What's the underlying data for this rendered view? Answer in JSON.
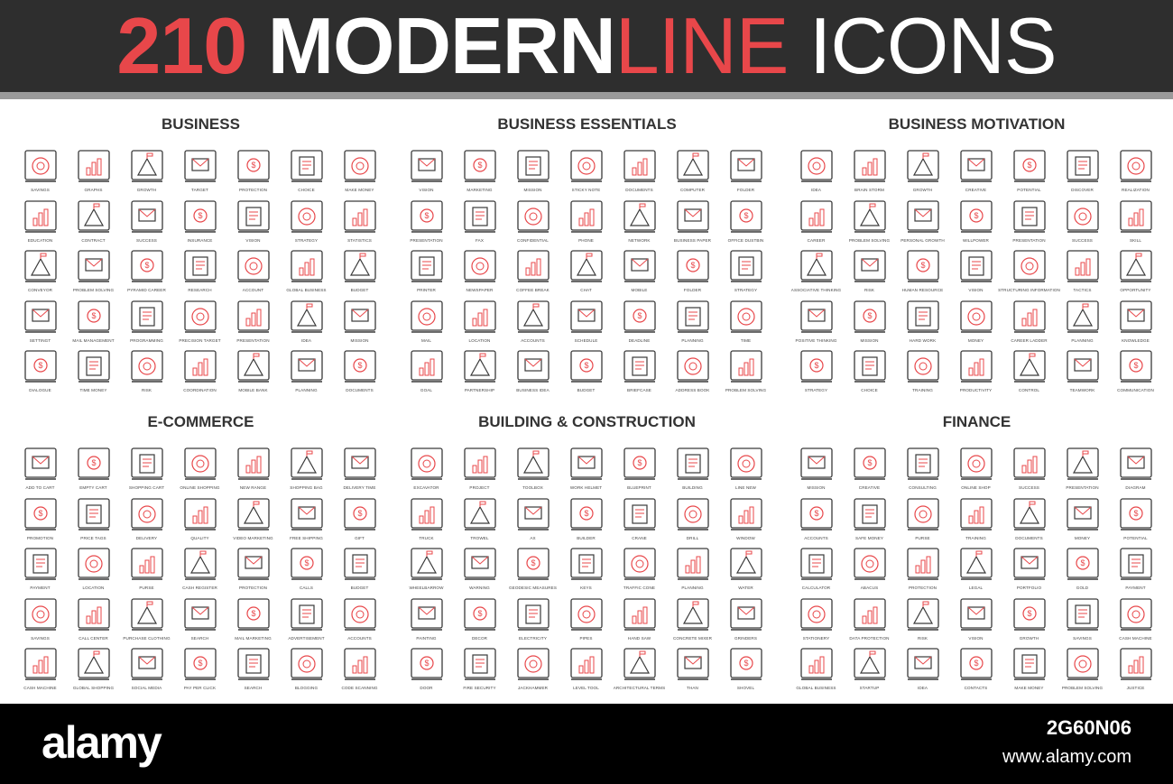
{
  "header": {
    "number": "210",
    "word1": "MODERN",
    "word2": "LINE",
    "word3": "ICONS"
  },
  "colors": {
    "accent": "#e8474a",
    "line": "#3a3a3a",
    "header_bg": "#2e2e2e"
  },
  "sections": [
    {
      "title": "BUSINESS",
      "items": [
        "SAVINGS",
        "GRAPHS",
        "GROWTH",
        "TARGET",
        "PROTECTION",
        "CHOICE",
        "MAKE MONEY",
        "EDUCATION",
        "CONTRACT",
        "SUCCESS",
        "INSURANCE",
        "VISION",
        "STRATEGY",
        "STATISTICS",
        "CONVEYOR",
        "PROBLEM SOLVING",
        "PYRAMID CAREER",
        "RESEARCH",
        "ACCOUNT",
        "GLOBAL BUSINESS",
        "BUDGET",
        "SETTINGT",
        "MAIL MANAGEMENT",
        "PROGRAMMING",
        "PRECISION TARGET",
        "PRESENTATION",
        "IDEA",
        "MISSION",
        "DIALOGUE",
        "TIME MONEY",
        "RISK",
        "COORDINATION",
        "MOBILE BANK",
        "PLANNING",
        "DOCUMENTS"
      ]
    },
    {
      "title": "BUSINESS ESSENTIALS",
      "items": [
        "VISION",
        "MARKETING",
        "MISSION",
        "STICKY NOTE",
        "DOCUMENTS",
        "COMPUTER",
        "FOLDER",
        "PRESENTATION",
        "FAX",
        "CONFIDENTIAL",
        "PHONE",
        "NETWORK",
        "BUSINESS PAPER",
        "OFFICE DUSTBIN",
        "PRINTER",
        "NEWSPAPER",
        "COFFEE BREAK",
        "CHAT",
        "MOBILE",
        "FOLDER",
        "STRATEGY",
        "MAIL",
        "LOCATION",
        "ACCOUNTS",
        "SCHEDULE",
        "DEADLINE",
        "PLANNING",
        "TIME",
        "GOAL",
        "PARTNERSHIP",
        "BUSINESS IDEA",
        "BUDGET",
        "BRIEFCASE",
        "ADDRESS BOOK",
        "PROBLEM SOLVING"
      ]
    },
    {
      "title": "BUSINESS MOTIVATION",
      "items": [
        "IDEA",
        "BRAIN STORM",
        "GROWTH",
        "CREATIVE",
        "POTENTIAL",
        "DISCOVER",
        "REALIZATION",
        "CAREER",
        "PROBLEM SOLVING",
        "PERSONAL GROWTH",
        "WILLPOWER",
        "PRESENTATION",
        "SUCCESS",
        "SKILL",
        "ASSOCIATIVE THINKING",
        "RISK",
        "HUMAN RESOURCE",
        "VISION",
        "STRUCTURING INFORMATION",
        "TACTICS",
        "OPPORTUNITY",
        "POSITIVE THINKING",
        "MISSION",
        "HARD WORK",
        "MONEY",
        "CAREER LADDER",
        "PLANNING",
        "KNOWLEDGE",
        "STRATEGY",
        "CHOICE",
        "TRAINING",
        "PRODUCTIVITY",
        "CONTROL",
        "TEAMWORK",
        "COMMUNICATION"
      ]
    },
    {
      "title": "E-COMMERCE",
      "items": [
        "ADD TO CART",
        "EMPTY CART",
        "SHOPPING CART",
        "ONLINE SHOPPING",
        "NEW RANGE",
        "SHOPPING BAG",
        "DELIVERY TIME",
        "PROMOTION",
        "PRICE TAGS",
        "DELIVERY",
        "QUALITY",
        "VIDEO MARKETING",
        "FREE SHIPPING",
        "GIFT",
        "PAYMENT",
        "LOCATION",
        "PURSE",
        "CASH REGISTER",
        "PROTECTION",
        "CALLS",
        "BUDGET",
        "SAVINGS",
        "CALL CENTER",
        "PURCHASE CLOTHING",
        "SEARCH",
        "MAIL MARKETING",
        "ADVERTISEMENT",
        "ACCOUNTS",
        "CASH MACHINE",
        "GLOBAL SHOPPING",
        "SOCIAL MEDIA",
        "PAY PER CLICK",
        "SEARCH",
        "BLOGGING",
        "CODE SCANNING"
      ]
    },
    {
      "title": "BUILDING & CONSTRUCTION",
      "items": [
        "EXCAVATOR",
        "PROJECT",
        "TOOLBOX",
        "WORK HELMET",
        "BLUEPRINT",
        "BUILDING",
        "LINE NEW",
        "TRUCK",
        "TROWEL",
        "AX",
        "BUILDER",
        "CRANE",
        "DRILL",
        "WINDOW",
        "WHEELBARROW",
        "WARNING",
        "GEODESIC MEASURES",
        "KEYS",
        "TRAFFIC CONE",
        "PLANNING",
        "WATER",
        "PAINTING",
        "DECOR",
        "ELECTRICITY",
        "PIPES",
        "HAND SAW",
        "CONCRETE MIXER",
        "GRINDERS",
        "DOOR",
        "FIRE SECURITY",
        "JACKHAMMER",
        "LEVEL TOOL",
        "ARCHITECTURAL TERMS",
        "THAN",
        "SHOVEL"
      ]
    },
    {
      "title": "FINANCE",
      "items": [
        "MISSION",
        "CREATIVE",
        "CONSULTING",
        "ONLINE SHOP",
        "SUCCESS",
        "PRESENTATION",
        "DIAGRAM",
        "ACCOUNTS",
        "SAFE MONEY",
        "PURSE",
        "TRAINING",
        "DOCUMENTS",
        "MONEY",
        "POTENTIAL",
        "CALCULATOR",
        "ABACUS",
        "PROTECTION",
        "LEGAL",
        "PORTFOLIO",
        "GOLD",
        "PAYMENT",
        "STATIONERY",
        "DATA PROTECTION",
        "RISK",
        "VISION",
        "GROWTH",
        "SAVINGS",
        "CASH MACHINE",
        "GLOBAL BUSINESS",
        "STARTUP",
        "IDEA",
        "CONTACTS",
        "MAKE MONEY",
        "PROBLEM SOLVING",
        "JUSTICE"
      ]
    }
  ],
  "footer": {
    "logo": "alamy",
    "image_id": "2G60N06",
    "url": "www.alamy.com"
  }
}
